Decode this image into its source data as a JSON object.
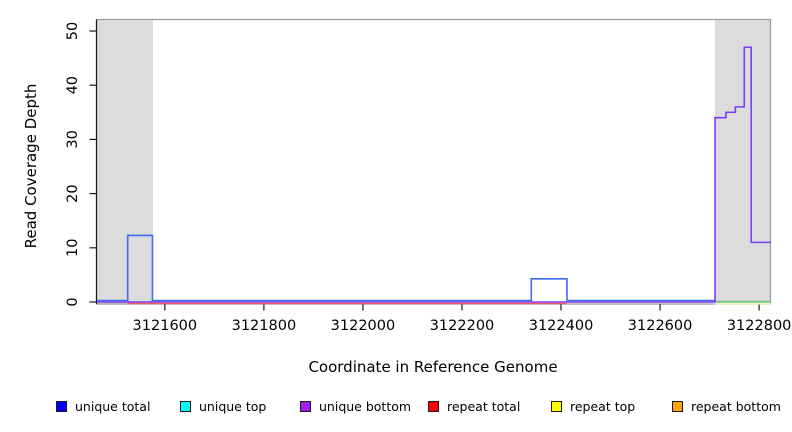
{
  "chart_data": {
    "type": "step-line",
    "title": "",
    "xlabel": "Coordinate in Reference Genome",
    "ylabel": "Read Coverage Depth",
    "x_ticks": [
      3121600,
      3121800,
      3122000,
      3122200,
      3122400,
      3122600,
      3122800
    ],
    "y_ticks": [
      0,
      10,
      20,
      30,
      40,
      50
    ],
    "x_range": [
      3121463,
      3122824
    ],
    "y_range": [
      0,
      52
    ],
    "grid": false,
    "background_shaded_regions": [
      {
        "name": "left-repeat-region",
        "x_start": 3121463,
        "x_end": 3121576,
        "color": "#dcdcdc"
      },
      {
        "name": "right-repeat-region",
        "x_start": 3122711,
        "x_end": 3122824,
        "color": "#dcdcdc"
      }
    ],
    "series": [
      {
        "name": "pale-yellow-baseline",
        "line_color": "#eeeec8",
        "segments": [
          [
            3122711,
            3122824,
            0
          ]
        ]
      },
      {
        "name": "green-baseline",
        "line_color": "#63c87d",
        "segments": [
          [
            3122711,
            3122824,
            0
          ]
        ]
      },
      {
        "name": "repeat total",
        "line_color": "#f05c5c",
        "segments": [
          [
            3121525,
            3121575,
            0
          ],
          [
            3122340,
            3122412,
            0
          ]
        ]
      },
      {
        "name": "unique total",
        "line_color": "#3d6ef2",
        "segments": [
          [
            3121463,
            3121525,
            0
          ],
          [
            3121525,
            3121575,
            12
          ],
          [
            3121575,
            3122340,
            0
          ],
          [
            3122340,
            3122412,
            4
          ],
          [
            3122412,
            3122711,
            0
          ]
        ]
      },
      {
        "name": "unique bottom",
        "line_color": "#7a3cf0",
        "segments": [
          [
            3121463,
            3122711,
            0
          ],
          [
            3122711,
            3122733,
            34
          ],
          [
            3122733,
            3122752,
            35
          ],
          [
            3122752,
            3122770,
            36
          ],
          [
            3122770,
            3122784,
            47
          ],
          [
            3122784,
            3122824,
            11
          ]
        ]
      }
    ],
    "legend": {
      "position": "bottom",
      "items": [
        {
          "label": "unique total",
          "color": "#0000ff"
        },
        {
          "label": "unique top",
          "color": "#00ffff"
        },
        {
          "label": "unique bottom",
          "color": "#a020f0"
        },
        {
          "label": "repeat total",
          "color": "#ff0000"
        },
        {
          "label": "repeat top",
          "color": "#ffff00"
        },
        {
          "label": "repeat bottom",
          "color": "#ffa500"
        }
      ]
    }
  }
}
